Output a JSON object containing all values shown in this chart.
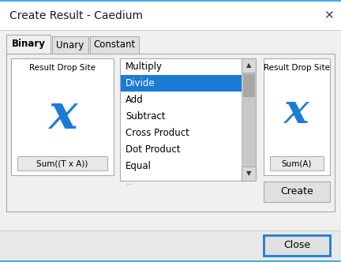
{
  "title": "Create Result - Caedium",
  "title_color": "#1a1a1a",
  "bg_color": "#e8e8e8",
  "titlebar_bg": "#ffffff",
  "titlebar_top_border": "#44aadd",
  "content_bg": "#f0f0f0",
  "tab_active_bg": "#f0f0f0",
  "tab_inactive_bg": "#e0e0e0",
  "main_panel_bg": "#f0f0f0",
  "main_panel_border": "#c0c0c0",
  "white": "#ffffff",
  "left_box_label": "Result Drop Site",
  "left_box_text": "Sum((T x A))",
  "right_box_label": "Result Drop Site",
  "right_box_text": "Sum(A)",
  "dropdown_items": [
    "Multiply",
    "Divide",
    "Add",
    "Subtract",
    "Cross Product",
    "Dot Product",
    "Equal"
  ],
  "selected_item": "Divide",
  "selected_bg": "#1c7cd5",
  "selected_fg": "#ffffff",
  "button_create": "Create",
  "button_close": "Close",
  "close_btn_border": "#1c7cd5",
  "x_color": "#1c7cd5",
  "bottom_bg": "#e8e8e8",
  "scroll_bg": "#c8c8c8",
  "scroll_thumb": "#a8a8a8",
  "box_border": "#aaaaaa",
  "btn_bg": "#e0e0e0",
  "btn_border": "#aaaaaa"
}
